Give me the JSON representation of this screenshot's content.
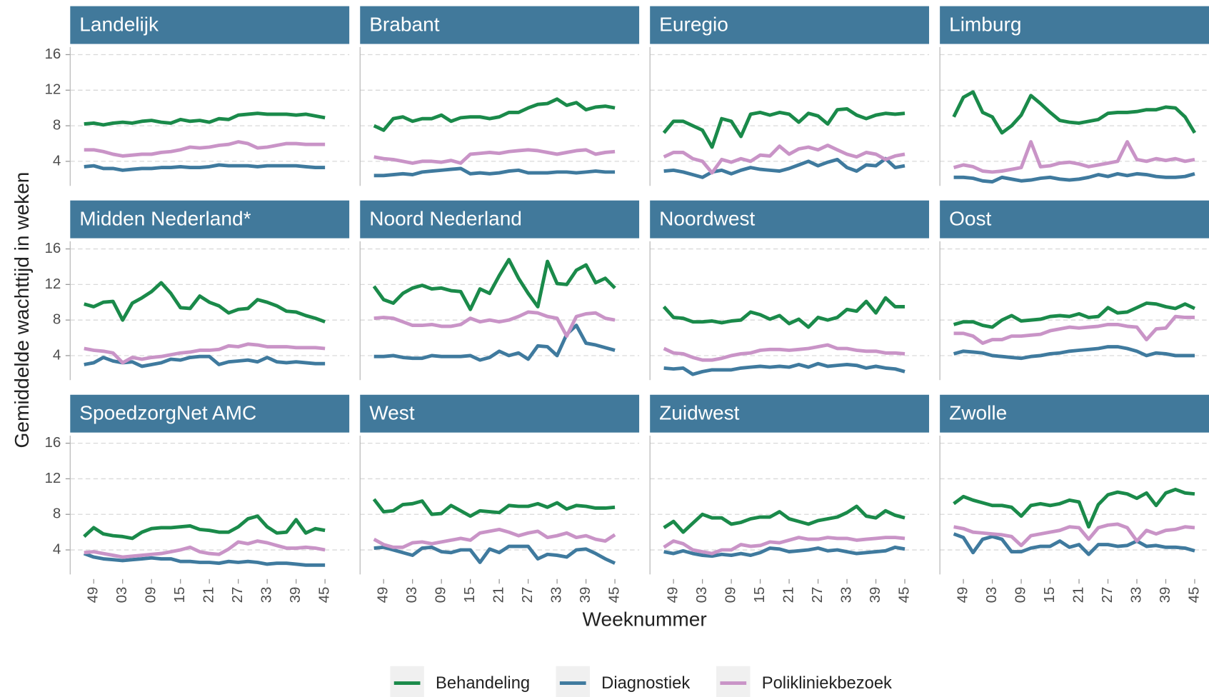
{
  "chart_data": {
    "type": "line",
    "xlabel": "Weeknummer",
    "ylabel": "Gemiddelde wachttijd in weken",
    "grid": true,
    "legend": "bottom",
    "ylim": [
      0.9,
      17.2
    ],
    "yticks": [
      4,
      8,
      12,
      16
    ],
    "categories": [
      null,
      "49",
      null,
      null,
      "03",
      null,
      null,
      "09",
      null,
      null,
      "15",
      null,
      null,
      "21",
      null,
      null,
      "27",
      null,
      null,
      "33",
      null,
      null,
      "39",
      null,
      null,
      "45"
    ],
    "series": [
      {
        "name": "Behandeling",
        "color": "#1a8a4a"
      },
      {
        "name": "Diagnostiek",
        "color": "#3f7a9e"
      },
      {
        "name": "Polikliniekbezoek",
        "color": "#c994c7"
      }
    ],
    "panels": [
      {
        "title": "Landelijk",
        "values": [
          [
            8.2,
            8.3,
            8.1,
            8.3,
            8.4,
            8.3,
            8.5,
            8.6,
            8.4,
            8.3,
            8.7,
            8.5,
            8.6,
            8.4,
            8.8,
            8.7,
            9.2,
            9.3,
            9.4,
            9.3,
            9.3,
            9.3,
            9.2,
            9.3,
            9.1,
            8.9
          ],
          [
            3.4,
            3.5,
            3.2,
            3.2,
            3.0,
            3.1,
            3.2,
            3.2,
            3.3,
            3.3,
            3.4,
            3.3,
            3.3,
            3.4,
            3.6,
            3.5,
            3.5,
            3.5,
            3.4,
            3.5,
            3.5,
            3.5,
            3.5,
            3.4,
            3.3,
            3.3
          ],
          [
            5.3,
            5.3,
            5.1,
            4.8,
            4.6,
            4.7,
            4.8,
            4.8,
            5.0,
            5.1,
            5.3,
            5.6,
            5.5,
            5.6,
            5.8,
            5.9,
            6.2,
            6.0,
            5.5,
            5.6,
            5.8,
            6.0,
            6.0,
            5.9,
            5.9,
            5.9
          ]
        ]
      },
      {
        "title": "Brabant",
        "values": [
          [
            8.0,
            7.5,
            8.8,
            9.0,
            8.5,
            8.8,
            8.8,
            9.2,
            8.5,
            8.9,
            9.0,
            9.0,
            8.8,
            9.0,
            9.5,
            9.5,
            10.0,
            10.4,
            10.5,
            11.0,
            10.3,
            10.6,
            9.8,
            10.1,
            10.2,
            10.0
          ],
          [
            2.4,
            2.4,
            2.5,
            2.6,
            2.5,
            2.8,
            2.9,
            3.0,
            3.1,
            3.2,
            2.6,
            2.7,
            2.6,
            2.7,
            2.9,
            3.0,
            2.7,
            2.7,
            2.7,
            2.8,
            2.8,
            2.7,
            2.8,
            2.9,
            2.8,
            2.8
          ],
          [
            4.5,
            4.3,
            4.2,
            4.0,
            3.8,
            4.0,
            4.0,
            3.9,
            4.1,
            3.8,
            4.8,
            4.9,
            5.0,
            4.9,
            5.1,
            5.2,
            5.3,
            5.2,
            5.0,
            4.8,
            5.0,
            5.2,
            5.3,
            4.8,
            5.0,
            5.1
          ]
        ]
      },
      {
        "title": "Euregio",
        "values": [
          [
            7.2,
            8.5,
            8.5,
            8.0,
            7.5,
            5.6,
            8.8,
            8.5,
            6.8,
            9.3,
            9.5,
            9.2,
            9.5,
            9.3,
            8.4,
            9.4,
            9.1,
            8.2,
            9.8,
            9.9,
            9.2,
            8.8,
            9.2,
            9.4,
            9.3,
            9.4
          ],
          [
            2.9,
            3.0,
            2.8,
            2.5,
            2.2,
            2.8,
            3.0,
            2.6,
            3.0,
            3.3,
            3.1,
            3.0,
            2.9,
            3.2,
            3.6,
            4.0,
            3.5,
            3.9,
            4.2,
            3.3,
            2.9,
            3.6,
            3.5,
            4.3,
            3.3,
            3.5
          ],
          [
            4.5,
            5.0,
            5.0,
            4.3,
            4.0,
            2.7,
            4.2,
            3.9,
            4.3,
            4.0,
            4.7,
            4.6,
            5.7,
            4.8,
            5.4,
            5.6,
            5.3,
            5.8,
            5.3,
            4.8,
            4.5,
            5.0,
            4.8,
            4.2,
            4.6,
            4.8
          ]
        ]
      },
      {
        "title": "Limburg",
        "values": [
          [
            9.0,
            11.2,
            11.8,
            9.5,
            9.0,
            7.2,
            8.0,
            9.2,
            11.4,
            10.5,
            9.5,
            8.6,
            8.4,
            8.3,
            8.5,
            8.7,
            9.4,
            9.5,
            9.5,
            9.6,
            9.8,
            9.8,
            10.1,
            10.0,
            9.0,
            7.2
          ],
          [
            2.2,
            2.2,
            2.1,
            1.8,
            1.7,
            2.2,
            2.0,
            1.8,
            1.9,
            2.1,
            2.2,
            2.0,
            1.9,
            2.0,
            2.2,
            2.5,
            2.3,
            2.6,
            2.4,
            2.6,
            2.5,
            2.3,
            2.2,
            2.2,
            2.3,
            2.6
          ],
          [
            3.3,
            3.6,
            3.4,
            2.9,
            2.8,
            2.9,
            3.1,
            3.3,
            6.2,
            3.4,
            3.5,
            3.8,
            3.9,
            3.7,
            3.4,
            3.6,
            3.8,
            4.0,
            6.2,
            4.2,
            4.0,
            4.3,
            4.1,
            4.3,
            4.0,
            4.2
          ]
        ]
      },
      {
        "title": "Midden Nederland*",
        "values": [
          [
            9.8,
            9.5,
            10.0,
            10.1,
            8.0,
            9.9,
            10.5,
            11.2,
            12.2,
            11.0,
            9.4,
            9.3,
            10.7,
            10.0,
            9.6,
            8.8,
            9.2,
            9.3,
            10.3,
            10.0,
            9.6,
            9.0,
            8.9,
            8.5,
            8.2,
            7.8
          ],
          [
            3.0,
            3.2,
            3.8,
            3.4,
            3.2,
            3.3,
            2.8,
            3.0,
            3.2,
            3.6,
            3.5,
            3.8,
            3.9,
            3.9,
            3.0,
            3.3,
            3.4,
            3.5,
            3.3,
            3.8,
            3.3,
            3.2,
            3.3,
            3.2,
            3.1,
            3.1
          ],
          [
            4.8,
            4.6,
            4.5,
            4.3,
            3.2,
            3.8,
            3.6,
            3.8,
            3.9,
            4.1,
            4.3,
            4.4,
            4.6,
            4.6,
            4.7,
            5.1,
            5.0,
            5.3,
            5.2,
            5.0,
            5.0,
            5.0,
            4.9,
            4.9,
            4.9,
            4.8
          ]
        ]
      },
      {
        "title": "Noord Nederland",
        "values": [
          [
            11.8,
            10.3,
            9.9,
            11.0,
            11.6,
            11.9,
            11.5,
            11.6,
            11.3,
            11.2,
            9.2,
            11.5,
            11.0,
            13.0,
            14.8,
            12.7,
            11.0,
            9.5,
            14.6,
            12.1,
            12.0,
            13.6,
            14.2,
            12.2,
            12.7,
            11.6
          ],
          [
            3.9,
            3.9,
            4.0,
            3.8,
            3.7,
            3.7,
            4.0,
            3.9,
            3.9,
            3.9,
            4.0,
            3.5,
            3.8,
            4.5,
            4.0,
            4.3,
            3.6,
            5.1,
            5.0,
            4.0,
            6.4,
            7.4,
            5.4,
            5.2,
            4.9,
            4.6
          ],
          [
            8.2,
            8.3,
            8.2,
            7.8,
            7.4,
            7.4,
            7.5,
            7.3,
            7.3,
            7.5,
            8.2,
            7.8,
            8.0,
            7.8,
            8.0,
            8.4,
            8.9,
            8.8,
            8.4,
            8.2,
            6.2,
            8.4,
            8.7,
            8.8,
            8.2,
            8.0
          ]
        ]
      },
      {
        "title": "Noordwest",
        "values": [
          [
            9.5,
            8.3,
            8.2,
            7.8,
            7.8,
            7.9,
            7.7,
            7.9,
            8.0,
            8.9,
            8.6,
            8.1,
            8.5,
            7.6,
            8.1,
            7.2,
            8.3,
            8.0,
            8.3,
            9.2,
            9.0,
            10.1,
            8.8,
            10.5,
            9.5,
            9.5
          ],
          [
            2.6,
            2.5,
            2.6,
            1.9,
            2.2,
            2.4,
            2.4,
            2.4,
            2.6,
            2.7,
            2.8,
            2.7,
            2.8,
            2.7,
            3.0,
            2.7,
            3.1,
            2.8,
            2.9,
            3.0,
            2.9,
            2.6,
            2.8,
            2.6,
            2.5,
            2.2
          ],
          [
            4.8,
            4.3,
            4.2,
            3.8,
            3.5,
            3.5,
            3.7,
            4.0,
            4.2,
            4.3,
            4.6,
            4.7,
            4.7,
            4.6,
            4.7,
            4.8,
            5.0,
            5.2,
            4.8,
            4.8,
            4.6,
            4.5,
            4.5,
            4.3,
            4.3,
            4.2
          ]
        ]
      },
      {
        "title": "Oost",
        "values": [
          [
            7.5,
            7.8,
            7.8,
            7.4,
            7.2,
            8.0,
            8.5,
            7.9,
            8.0,
            8.1,
            8.4,
            8.5,
            8.4,
            8.7,
            8.3,
            8.4,
            9.4,
            8.8,
            8.9,
            9.4,
            9.9,
            9.8,
            9.5,
            9.3,
            9.8,
            9.3
          ],
          [
            4.2,
            4.5,
            4.4,
            4.3,
            4.0,
            3.9,
            3.8,
            3.7,
            3.9,
            4.0,
            4.2,
            4.3,
            4.5,
            4.6,
            4.7,
            4.8,
            5.0,
            5.0,
            4.8,
            4.5,
            4.0,
            4.3,
            4.2,
            4.0,
            4.0,
            4.0
          ],
          [
            6.5,
            6.5,
            6.2,
            5.4,
            5.8,
            5.8,
            6.2,
            6.2,
            6.3,
            6.4,
            6.8,
            7.0,
            7.2,
            7.1,
            7.2,
            7.3,
            7.5,
            7.5,
            7.3,
            7.2,
            5.8,
            7.0,
            7.1,
            8.4,
            8.3,
            8.3
          ]
        ]
      },
      {
        "title": "SpoedzorgNet AMC",
        "values": [
          [
            5.5,
            6.5,
            5.8,
            5.6,
            5.5,
            5.3,
            6.0,
            6.4,
            6.5,
            6.5,
            6.6,
            6.7,
            6.3,
            6.2,
            6.0,
            6.0,
            6.6,
            7.5,
            7.8,
            6.6,
            5.9,
            6.0,
            7.4,
            5.9,
            6.4,
            6.2
          ],
          [
            3.6,
            3.2,
            3.0,
            2.9,
            2.8,
            2.9,
            3.0,
            3.1,
            3.0,
            3.0,
            2.7,
            2.7,
            2.6,
            2.6,
            2.5,
            2.7,
            2.6,
            2.7,
            2.6,
            2.4,
            2.5,
            2.5,
            2.4,
            2.3,
            2.3,
            2.3
          ],
          [
            3.7,
            3.8,
            3.6,
            3.4,
            3.2,
            3.3,
            3.4,
            3.5,
            3.6,
            3.8,
            4.0,
            4.3,
            3.8,
            3.6,
            3.5,
            4.1,
            4.9,
            4.7,
            5.0,
            4.8,
            4.5,
            4.2,
            4.2,
            4.3,
            4.2,
            4.0
          ]
        ]
      },
      {
        "title": "West",
        "values": [
          [
            9.7,
            8.3,
            8.4,
            9.1,
            9.2,
            9.5,
            8.0,
            8.1,
            9.0,
            8.4,
            7.8,
            8.4,
            8.3,
            8.2,
            9.0,
            8.9,
            8.9,
            9.2,
            8.8,
            9.3,
            8.6,
            9.0,
            8.9,
            8.7,
            8.7,
            8.8
          ],
          [
            4.2,
            4.3,
            4.0,
            3.7,
            3.4,
            4.2,
            4.3,
            3.8,
            3.7,
            4.0,
            4.0,
            2.6,
            4.1,
            3.7,
            4.4,
            4.4,
            4.4,
            3.0,
            3.5,
            3.4,
            3.2,
            4.0,
            4.1,
            3.6,
            3.0,
            2.5
          ],
          [
            5.2,
            4.6,
            4.3,
            4.3,
            4.8,
            4.9,
            4.7,
            4.9,
            5.1,
            5.3,
            5.1,
            5.9,
            6.1,
            6.3,
            6.0,
            5.6,
            5.9,
            6.1,
            5.4,
            5.6,
            5.9,
            5.4,
            5.6,
            5.2,
            5.0,
            5.7
          ]
        ]
      },
      {
        "title": "Zuidwest",
        "values": [
          [
            6.5,
            7.2,
            6.0,
            7.0,
            8.0,
            7.6,
            7.6,
            6.9,
            7.1,
            7.5,
            7.7,
            7.7,
            8.3,
            7.5,
            7.2,
            6.9,
            7.3,
            7.5,
            7.7,
            8.2,
            8.9,
            7.8,
            7.6,
            8.4,
            7.9,
            7.6
          ],
          [
            3.8,
            3.6,
            3.9,
            3.6,
            3.4,
            3.3,
            3.5,
            3.4,
            3.6,
            3.4,
            3.7,
            4.2,
            4.1,
            3.8,
            3.9,
            4.0,
            4.2,
            3.9,
            4.0,
            3.8,
            3.6,
            3.7,
            3.8,
            3.9,
            4.3,
            4.1
          ],
          [
            4.3,
            5.0,
            4.7,
            4.0,
            3.8,
            3.6,
            4.0,
            4.0,
            4.6,
            4.4,
            4.5,
            4.9,
            4.8,
            5.1,
            5.4,
            5.2,
            5.2,
            5.4,
            5.3,
            5.3,
            5.1,
            5.2,
            5.3,
            5.4,
            5.4,
            5.3
          ]
        ]
      },
      {
        "title": "Zwolle",
        "values": [
          [
            9.2,
            10.0,
            9.6,
            9.3,
            9.0,
            9.0,
            8.8,
            7.8,
            9.0,
            9.2,
            9.0,
            9.2,
            9.6,
            9.4,
            6.6,
            9.1,
            10.2,
            10.5,
            10.3,
            9.8,
            10.4,
            9.0,
            10.4,
            10.8,
            10.4,
            10.3
          ],
          [
            5.8,
            5.4,
            3.7,
            5.2,
            5.5,
            5.2,
            3.8,
            3.8,
            4.2,
            4.4,
            4.4,
            5.0,
            4.3,
            4.6,
            3.5,
            4.6,
            4.6,
            4.4,
            4.5,
            5.0,
            4.4,
            4.5,
            4.3,
            4.3,
            4.2,
            3.9
          ],
          [
            6.6,
            6.4,
            6.0,
            5.9,
            5.8,
            5.7,
            5.5,
            4.5,
            5.6,
            5.8,
            6.0,
            6.2,
            6.6,
            6.5,
            5.2,
            6.5,
            6.8,
            6.9,
            6.5,
            5.0,
            6.2,
            5.8,
            6.2,
            6.3,
            6.6,
            6.5
          ]
        ]
      }
    ]
  }
}
